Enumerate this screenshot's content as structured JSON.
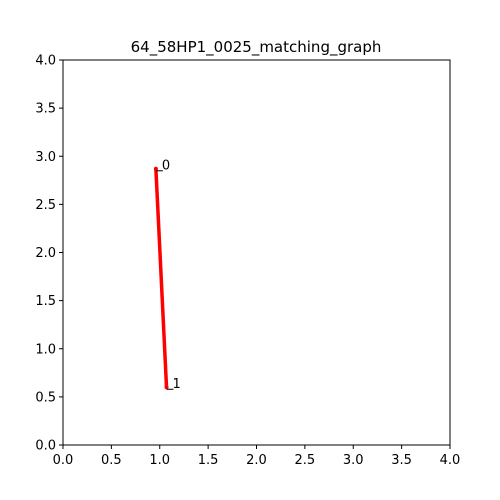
{
  "chart_data": {
    "type": "line",
    "title": "64_58HP1_0025_matching_graph",
    "xlabel": "",
    "ylabel": "",
    "xlim": [
      0.0,
      4.0
    ],
    "ylim": [
      0.0,
      4.0
    ],
    "x_ticks": [
      "0.0",
      "0.5",
      "1.0",
      "1.5",
      "2.0",
      "2.5",
      "3.0",
      "3.5",
      "4.0"
    ],
    "y_ticks": [
      "0.0",
      "0.5",
      "1.0",
      "1.5",
      "2.0",
      "2.5",
      "3.0",
      "3.5",
      "4.0"
    ],
    "grid": false,
    "series": [
      {
        "color": "#ff0000",
        "points": [
          {
            "label": "0",
            "x": 0.96,
            "y": 2.87
          },
          {
            "label": "1",
            "x": 1.07,
            "y": 0.6
          }
        ]
      }
    ]
  }
}
